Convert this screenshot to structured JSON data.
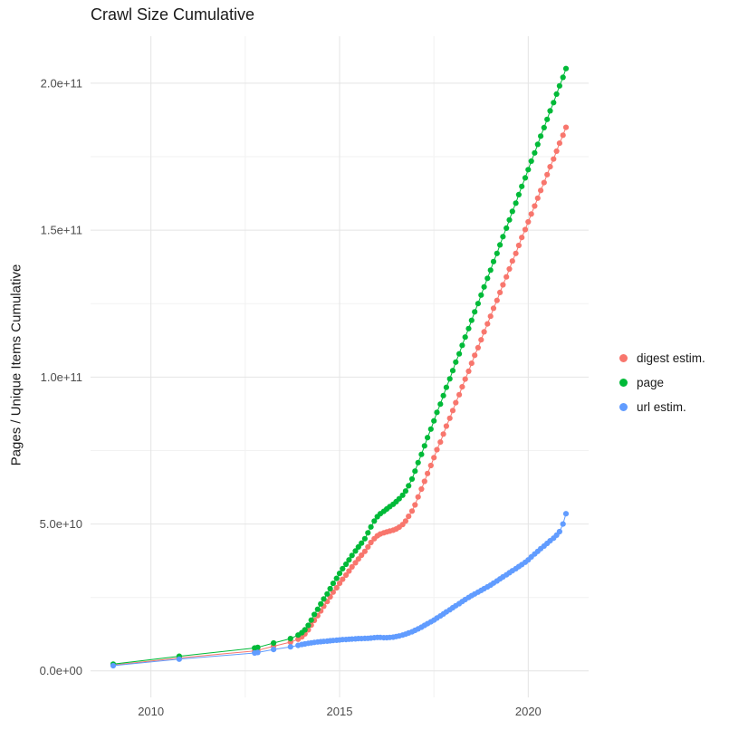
{
  "chart_data": {
    "type": "scatter",
    "title": "Crawl Size Cumulative",
    "xlabel": "",
    "ylabel": "Pages / Unique Items Cumulative",
    "legend_position": "right",
    "grid": true,
    "y_unit": "1e9",
    "xlim": [
      2008.4,
      2021.6
    ],
    "ylim": [
      -9,
      216
    ],
    "x_tick_values": [
      2010,
      2015,
      2020
    ],
    "x_tick_labels": [
      "2010",
      "2015",
      "2020"
    ],
    "x_minor_tick_values": [
      2012.5,
      2017.5
    ],
    "y_tick_values": [
      0,
      50,
      100,
      150,
      200
    ],
    "y_tick_labels": [
      "0.0e+00",
      "5.0e+10",
      "1.0e+11",
      "1.5e+11",
      "2.0e+11"
    ],
    "y_minor_tick_values": [
      25,
      75,
      125,
      175
    ],
    "series": [
      {
        "name": "digest estim.",
        "color": "#F8766D",
        "points": [
          [
            2009.0,
            2.0
          ],
          [
            2010.75,
            4.4
          ],
          [
            2012.75,
            6.8
          ],
          [
            2012.83,
            7.0
          ],
          [
            2013.25,
            8.4
          ],
          [
            2013.7,
            9.8
          ],
          [
            2013.9,
            10.8
          ],
          [
            2014.0,
            11.6
          ],
          [
            2014.08,
            12.6
          ],
          [
            2014.17,
            14.0
          ],
          [
            2014.25,
            15.6
          ],
          [
            2014.33,
            17.2
          ],
          [
            2014.42,
            18.8
          ],
          [
            2014.5,
            20.4
          ],
          [
            2014.58,
            22.0
          ],
          [
            2014.67,
            23.6
          ],
          [
            2014.75,
            25.2
          ],
          [
            2014.83,
            26.8
          ],
          [
            2014.92,
            28.3
          ],
          [
            2015.0,
            29.8
          ],
          [
            2015.08,
            31.2
          ],
          [
            2015.17,
            32.6
          ],
          [
            2015.25,
            34.0
          ],
          [
            2015.33,
            35.4
          ],
          [
            2015.42,
            36.8
          ],
          [
            2015.5,
            38.1
          ],
          [
            2015.58,
            39.4
          ],
          [
            2015.67,
            40.7
          ],
          [
            2015.75,
            42.2
          ],
          [
            2015.83,
            43.7
          ],
          [
            2015.92,
            45.0
          ],
          [
            2016.0,
            46.0
          ],
          [
            2016.08,
            46.6
          ],
          [
            2016.17,
            47.0
          ],
          [
            2016.25,
            47.3
          ],
          [
            2016.33,
            47.6
          ],
          [
            2016.42,
            47.9
          ],
          [
            2016.5,
            48.3
          ],
          [
            2016.58,
            48.9
          ],
          [
            2016.67,
            49.8
          ],
          [
            2016.75,
            51.0
          ],
          [
            2016.83,
            52.6
          ],
          [
            2016.92,
            54.4
          ],
          [
            2017.0,
            56.5
          ],
          [
            2017.08,
            59.2
          ],
          [
            2017.17,
            61.9
          ],
          [
            2017.25,
            64.5
          ],
          [
            2017.33,
            67.2
          ],
          [
            2017.42,
            69.9
          ],
          [
            2017.5,
            72.6
          ],
          [
            2017.58,
            75.3
          ],
          [
            2017.67,
            77.9
          ],
          [
            2017.75,
            80.6
          ],
          [
            2017.83,
            83.3
          ],
          [
            2017.92,
            86.0
          ],
          [
            2018.0,
            88.6
          ],
          [
            2018.08,
            91.3
          ],
          [
            2018.17,
            94.0
          ],
          [
            2018.25,
            96.7
          ],
          [
            2018.33,
            99.3
          ],
          [
            2018.42,
            102.0
          ],
          [
            2018.5,
            104.7
          ],
          [
            2018.58,
            107.4
          ],
          [
            2018.67,
            110.0
          ],
          [
            2018.75,
            112.7
          ],
          [
            2018.83,
            115.4
          ],
          [
            2018.92,
            118.1
          ],
          [
            2019.0,
            120.7
          ],
          [
            2019.08,
            123.4
          ],
          [
            2019.17,
            126.1
          ],
          [
            2019.25,
            128.8
          ],
          [
            2019.33,
            131.4
          ],
          [
            2019.42,
            134.1
          ],
          [
            2019.5,
            136.8
          ],
          [
            2019.58,
            139.5
          ],
          [
            2019.67,
            142.1
          ],
          [
            2019.75,
            144.8
          ],
          [
            2019.83,
            147.5
          ],
          [
            2019.92,
            150.2
          ],
          [
            2020.0,
            152.8
          ],
          [
            2020.08,
            155.5
          ],
          [
            2020.17,
            158.2
          ],
          [
            2020.25,
            160.9
          ],
          [
            2020.33,
            163.5
          ],
          [
            2020.42,
            166.2
          ],
          [
            2020.5,
            168.9
          ],
          [
            2020.58,
            171.6
          ],
          [
            2020.67,
            174.2
          ],
          [
            2020.75,
            176.9
          ],
          [
            2020.83,
            179.6
          ],
          [
            2020.92,
            182.3
          ],
          [
            2021.0,
            185.0
          ]
        ]
      },
      {
        "name": "page",
        "color": "#00BA38",
        "points": [
          [
            2009.0,
            2.3
          ],
          [
            2010.75,
            5.0
          ],
          [
            2012.75,
            7.8
          ],
          [
            2012.83,
            8.0
          ],
          [
            2013.25,
            9.5
          ],
          [
            2013.7,
            11.0
          ],
          [
            2013.9,
            12.2
          ],
          [
            2014.0,
            13.0
          ],
          [
            2014.08,
            14.0
          ],
          [
            2014.17,
            15.5
          ],
          [
            2014.25,
            17.3
          ],
          [
            2014.33,
            19.2
          ],
          [
            2014.42,
            21.0
          ],
          [
            2014.5,
            22.8
          ],
          [
            2014.58,
            24.5
          ],
          [
            2014.67,
            26.2
          ],
          [
            2014.75,
            28.0
          ],
          [
            2014.83,
            29.8
          ],
          [
            2014.92,
            31.5
          ],
          [
            2015.0,
            33.2
          ],
          [
            2015.08,
            34.8
          ],
          [
            2015.17,
            36.3
          ],
          [
            2015.25,
            37.8
          ],
          [
            2015.33,
            39.3
          ],
          [
            2015.42,
            40.8
          ],
          [
            2015.5,
            42.2
          ],
          [
            2015.58,
            43.5
          ],
          [
            2015.67,
            45.0
          ],
          [
            2015.75,
            47.0
          ],
          [
            2015.83,
            49.0
          ],
          [
            2015.92,
            51.0
          ],
          [
            2016.0,
            52.5
          ],
          [
            2016.08,
            53.5
          ],
          [
            2016.17,
            54.3
          ],
          [
            2016.25,
            55.1
          ],
          [
            2016.33,
            55.9
          ],
          [
            2016.42,
            56.7
          ],
          [
            2016.5,
            57.6
          ],
          [
            2016.58,
            58.6
          ],
          [
            2016.67,
            59.8
          ],
          [
            2016.75,
            61.2
          ],
          [
            2016.83,
            63.0
          ],
          [
            2016.92,
            65.3
          ],
          [
            2017.0,
            68.0
          ],
          [
            2017.08,
            70.9
          ],
          [
            2017.17,
            73.7
          ],
          [
            2017.25,
            76.6
          ],
          [
            2017.33,
            79.4
          ],
          [
            2017.42,
            82.3
          ],
          [
            2017.5,
            85.1
          ],
          [
            2017.58,
            88.0
          ],
          [
            2017.67,
            90.8
          ],
          [
            2017.75,
            93.7
          ],
          [
            2017.83,
            96.5
          ],
          [
            2017.92,
            99.4
          ],
          [
            2018.0,
            102.2
          ],
          [
            2018.08,
            105.1
          ],
          [
            2018.17,
            107.9
          ],
          [
            2018.25,
            110.8
          ],
          [
            2018.33,
            113.6
          ],
          [
            2018.42,
            116.5
          ],
          [
            2018.5,
            119.3
          ],
          [
            2018.58,
            122.2
          ],
          [
            2018.67,
            125.0
          ],
          [
            2018.75,
            127.9
          ],
          [
            2018.83,
            130.7
          ],
          [
            2018.92,
            133.6
          ],
          [
            2019.0,
            136.4
          ],
          [
            2019.08,
            139.3
          ],
          [
            2019.17,
            142.1
          ],
          [
            2019.25,
            145.0
          ],
          [
            2019.33,
            147.8
          ],
          [
            2019.42,
            150.7
          ],
          [
            2019.5,
            153.5
          ],
          [
            2019.58,
            156.4
          ],
          [
            2019.67,
            159.2
          ],
          [
            2019.75,
            162.1
          ],
          [
            2019.83,
            164.9
          ],
          [
            2019.92,
            167.8
          ],
          [
            2020.0,
            170.6
          ],
          [
            2020.08,
            173.5
          ],
          [
            2020.17,
            176.3
          ],
          [
            2020.25,
            179.2
          ],
          [
            2020.33,
            182.0
          ],
          [
            2020.42,
            184.9
          ],
          [
            2020.5,
            187.7
          ],
          [
            2020.58,
            190.6
          ],
          [
            2020.67,
            193.4
          ],
          [
            2020.75,
            196.3
          ],
          [
            2020.83,
            199.1
          ],
          [
            2020.92,
            202.0
          ],
          [
            2021.0,
            205.0
          ]
        ]
      },
      {
        "name": "url estim.",
        "color": "#619CFF",
        "points": [
          [
            2009.0,
            1.8
          ],
          [
            2010.75,
            4.0
          ],
          [
            2012.75,
            6.1
          ],
          [
            2012.83,
            6.3
          ],
          [
            2013.25,
            7.3
          ],
          [
            2013.7,
            8.2
          ],
          [
            2013.9,
            8.7
          ],
          [
            2014.0,
            9.0
          ],
          [
            2014.08,
            9.2
          ],
          [
            2014.17,
            9.4
          ],
          [
            2014.25,
            9.55
          ],
          [
            2014.33,
            9.7
          ],
          [
            2014.42,
            9.85
          ],
          [
            2014.5,
            9.95
          ],
          [
            2014.58,
            10.05
          ],
          [
            2014.67,
            10.15
          ],
          [
            2014.75,
            10.25
          ],
          [
            2014.83,
            10.35
          ],
          [
            2014.92,
            10.45
          ],
          [
            2015.0,
            10.55
          ],
          [
            2015.08,
            10.65
          ],
          [
            2015.17,
            10.7
          ],
          [
            2015.25,
            10.8
          ],
          [
            2015.33,
            10.85
          ],
          [
            2015.42,
            10.9
          ],
          [
            2015.5,
            11.0
          ],
          [
            2015.58,
            11.0
          ],
          [
            2015.67,
            11.05
          ],
          [
            2015.75,
            11.1
          ],
          [
            2015.83,
            11.2
          ],
          [
            2015.92,
            11.3
          ],
          [
            2016.0,
            11.4
          ],
          [
            2016.08,
            11.4
          ],
          [
            2016.17,
            11.3
          ],
          [
            2016.25,
            11.3
          ],
          [
            2016.33,
            11.4
          ],
          [
            2016.42,
            11.5
          ],
          [
            2016.5,
            11.7
          ],
          [
            2016.58,
            11.9
          ],
          [
            2016.67,
            12.2
          ],
          [
            2016.75,
            12.5
          ],
          [
            2016.83,
            12.9
          ],
          [
            2016.92,
            13.3
          ],
          [
            2017.0,
            13.8
          ],
          [
            2017.08,
            14.3
          ],
          [
            2017.17,
            14.9
          ],
          [
            2017.25,
            15.5
          ],
          [
            2017.33,
            16.1
          ],
          [
            2017.42,
            16.7
          ],
          [
            2017.5,
            17.3
          ],
          [
            2017.58,
            18.0
          ],
          [
            2017.67,
            18.7
          ],
          [
            2017.75,
            19.4
          ],
          [
            2017.83,
            20.1
          ],
          [
            2017.92,
            20.8
          ],
          [
            2018.0,
            21.5
          ],
          [
            2018.08,
            22.2
          ],
          [
            2018.17,
            22.9
          ],
          [
            2018.25,
            23.6
          ],
          [
            2018.33,
            24.3
          ],
          [
            2018.42,
            25.0
          ],
          [
            2018.5,
            25.6
          ],
          [
            2018.58,
            26.2
          ],
          [
            2018.67,
            26.8
          ],
          [
            2018.75,
            27.4
          ],
          [
            2018.83,
            28.0
          ],
          [
            2018.92,
            28.6
          ],
          [
            2019.0,
            29.2
          ],
          [
            2019.08,
            29.9
          ],
          [
            2019.17,
            30.6
          ],
          [
            2019.25,
            31.3
          ],
          [
            2019.33,
            32.0
          ],
          [
            2019.42,
            32.7
          ],
          [
            2019.5,
            33.4
          ],
          [
            2019.58,
            34.1
          ],
          [
            2019.67,
            34.8
          ],
          [
            2019.75,
            35.5
          ],
          [
            2019.83,
            36.2
          ],
          [
            2019.92,
            37.0
          ],
          [
            2020.0,
            37.8
          ],
          [
            2020.08,
            38.8
          ],
          [
            2020.17,
            39.8
          ],
          [
            2020.25,
            40.7
          ],
          [
            2020.33,
            41.6
          ],
          [
            2020.42,
            42.5
          ],
          [
            2020.5,
            43.4
          ],
          [
            2020.58,
            44.3
          ],
          [
            2020.67,
            45.2
          ],
          [
            2020.75,
            46.2
          ],
          [
            2020.83,
            47.4
          ],
          [
            2020.92,
            50.0
          ],
          [
            2021.0,
            53.5
          ]
        ]
      }
    ],
    "colors": {
      "grid_major": "#e4e4e4",
      "grid_minor": "#f2f2f2",
      "tick_label": "#4d4d4d",
      "background": "#ffffff"
    }
  }
}
